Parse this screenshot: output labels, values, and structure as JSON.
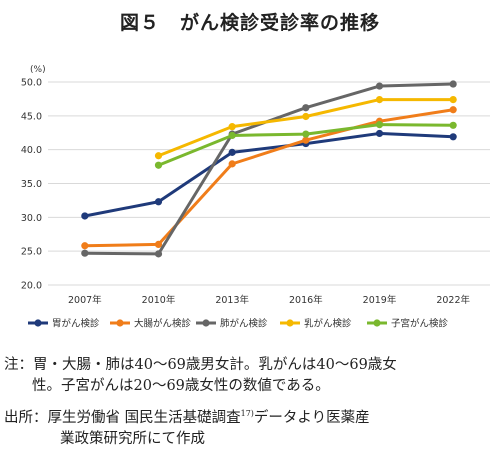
{
  "title": "図５　がん検診受診率の推移",
  "chart_data": {
    "type": "line",
    "unit_label": "(%)",
    "categories": [
      "2007年",
      "2010年",
      "2013年",
      "2016年",
      "2019年",
      "2022年"
    ],
    "ylim": [
      20,
      50
    ],
    "yticks": [
      "20.0",
      "25.0",
      "30.0",
      "35.0",
      "40.0",
      "45.0",
      "50.0"
    ],
    "grid": true,
    "legend_position": "bottom",
    "series": [
      {
        "name": "胃がん検診",
        "color": "#1f3a7a",
        "values": [
          30.2,
          32.3,
          39.6,
          40.9,
          42.4,
          41.9
        ]
      },
      {
        "name": "大腸がん検診",
        "color": "#f07d1a",
        "values": [
          25.8,
          26.0,
          37.9,
          41.4,
          44.2,
          45.9
        ]
      },
      {
        "name": "肺がん検診",
        "color": "#666666",
        "values": [
          24.7,
          24.6,
          42.3,
          46.2,
          49.4,
          49.7
        ]
      },
      {
        "name": "乳がん検診",
        "color": "#f5b800",
        "values": [
          null,
          39.1,
          43.4,
          44.9,
          47.4,
          47.4
        ]
      },
      {
        "name": "子宮がん検診",
        "color": "#7ab82e",
        "values": [
          null,
          37.7,
          42.1,
          42.3,
          43.7,
          43.6
        ]
      }
    ]
  },
  "notes": {
    "line1": "注：胃・大腸・肺は40～69歳男女計。乳がんは40～69歳女",
    "line2": "性。子宮がんは20～69歳女性の数値である。",
    "line3": "出所：厚生労働省 国民生活基礎調査",
    "line3_sup": "17)",
    "line3_tail": "データより医薬産",
    "line4": "業政策研究所にて作成"
  }
}
